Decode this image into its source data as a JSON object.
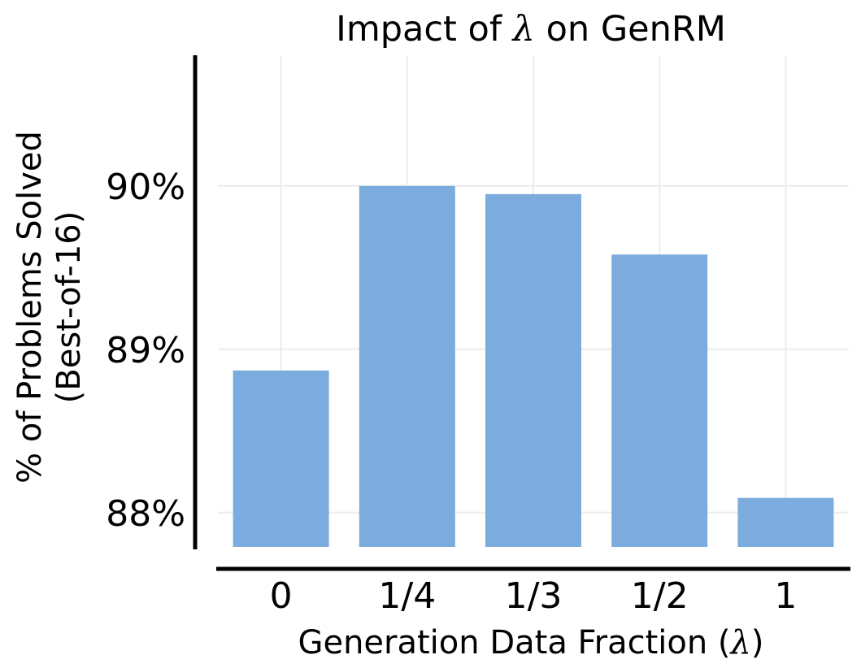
{
  "chart_data": {
    "type": "bar",
    "title_parts": {
      "before": "Impact of ",
      "symbol": "λ",
      "after": " on GenRM"
    },
    "xlabel_parts": {
      "before": "Generation Data Fraction (",
      "symbol": "λ",
      "after": ")"
    },
    "ylabel_lines": [
      "% of Problems Solved",
      "(Best-of-16)"
    ],
    "categories": [
      "0",
      "1/4",
      "1/3",
      "1/2",
      "1"
    ],
    "values": [
      88.87,
      90.0,
      89.95,
      89.58,
      88.09
    ],
    "ylim": [
      87.79,
      90.8
    ],
    "yticks": [
      88,
      89,
      90
    ],
    "ytick_labels": [
      "88%",
      "89%",
      "90%"
    ],
    "bar_color": "#78aadc",
    "axis_color": "#000000",
    "grid_color": "#ececec",
    "grid": true
  }
}
